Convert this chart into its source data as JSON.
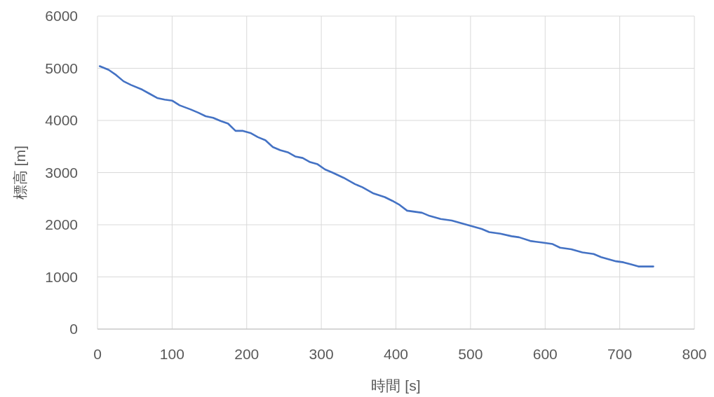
{
  "chart_data": {
    "type": "line",
    "xlabel": "時間 [s]",
    "ylabel": "標高 [m]",
    "color": "#4472c4",
    "grid": true,
    "x": [
      3,
      15,
      25,
      35,
      45,
      60,
      70,
      80,
      90,
      100,
      110,
      125,
      135,
      145,
      155,
      165,
      175,
      185,
      195,
      205,
      215,
      225,
      235,
      245,
      255,
      265,
      275,
      285,
      295,
      305,
      315,
      330,
      345,
      355,
      370,
      385,
      395,
      405,
      415,
      425,
      435,
      445,
      460,
      475,
      490,
      505,
      515,
      525,
      540,
      555,
      565,
      580,
      595,
      610,
      620,
      635,
      650,
      665,
      675,
      695,
      705,
      715,
      725,
      745
    ],
    "values": [
      5040,
      4970,
      4870,
      4750,
      4680,
      4590,
      4510,
      4430,
      4400,
      4380,
      4290,
      4210,
      4150,
      4080,
      4050,
      3990,
      3940,
      3800,
      3800,
      3760,
      3680,
      3620,
      3490,
      3430,
      3390,
      3310,
      3280,
      3200,
      3160,
      3060,
      3000,
      2900,
      2780,
      2720,
      2600,
      2530,
      2460,
      2380,
      2270,
      2250,
      2230,
      2170,
      2110,
      2080,
      2020,
      1960,
      1920,
      1860,
      1830,
      1780,
      1760,
      1690,
      1660,
      1630,
      1560,
      1530,
      1470,
      1440,
      1380,
      1300,
      1280,
      1240,
      1200,
      1200
    ],
    "xlim": [
      0,
      800
    ],
    "xticks": [
      0,
      100,
      200,
      300,
      400,
      500,
      600,
      700,
      800
    ],
    "ylim": [
      0,
      6000
    ],
    "yticks": [
      0,
      1000,
      2000,
      3000,
      4000,
      5000,
      6000
    ]
  }
}
